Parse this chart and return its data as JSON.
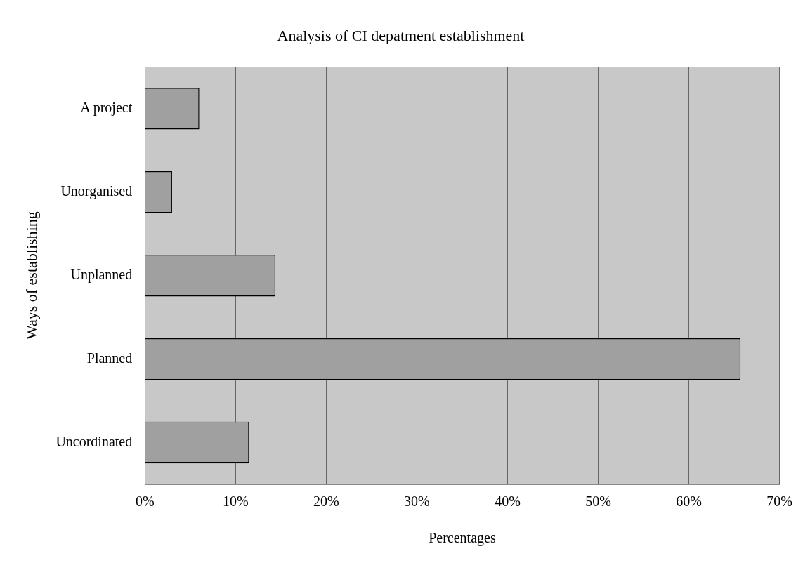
{
  "chart_data": {
    "type": "bar",
    "orientation": "horizontal",
    "title": "Analysis of CI depatment establishment",
    "xlabel": "Percentages",
    "ylabel": "Ways of establishing",
    "categories": [
      "A project",
      "Unorganised",
      "Unplanned",
      "Planned",
      "Uncordinated"
    ],
    "values": [
      6.0,
      3.0,
      14.4,
      65.7,
      11.5
    ],
    "color": "#a0a0a0",
    "xlim": [
      0,
      70
    ],
    "xticks": [
      {
        "value": 0,
        "label": "0%"
      },
      {
        "value": 10,
        "label": "10%"
      },
      {
        "value": 20,
        "label": "20%"
      },
      {
        "value": 30,
        "label": "30%"
      },
      {
        "value": 40,
        "label": "40%"
      },
      {
        "value": 50,
        "label": "50%"
      },
      {
        "value": 60,
        "label": "60%"
      },
      {
        "value": 70,
        "label": "70%"
      }
    ],
    "grid": "x",
    "legend": false
  }
}
